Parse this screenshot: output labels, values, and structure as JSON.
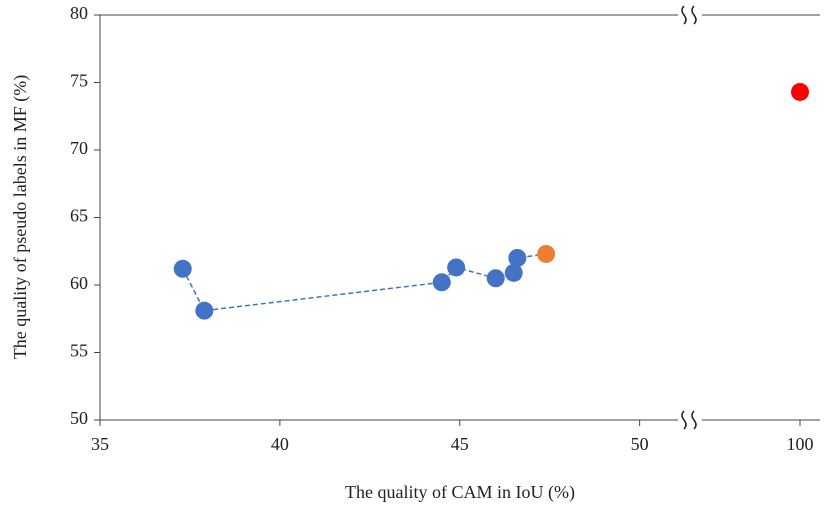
{
  "chart_data": {
    "type": "scatter",
    "xlabel": "The quality of CAM in IoU (%)",
    "ylabel": "The quality of pseudo labels in MF (%)",
    "ylim": [
      50,
      80
    ],
    "yticks": [
      50,
      55,
      60,
      65,
      70,
      75,
      80
    ],
    "x_segments": [
      {
        "xlim": [
          35,
          51.4
        ],
        "xticks": [
          35,
          40,
          45,
          50
        ]
      },
      {
        "xlim": [
          97,
          100.5
        ],
        "xticks": [
          100
        ]
      }
    ],
    "series": [
      {
        "color": "#4472c4",
        "line": "dashed",
        "x": [
          37.3,
          37.9,
          44.5,
          44.9,
          46.0,
          46.5,
          46.6
        ],
        "values": [
          61.2,
          58.1,
          60.2,
          61.3,
          60.5,
          60.9,
          62.0
        ]
      },
      {
        "color": "#ed7d31",
        "line": "dashed",
        "x": [
          47.4
        ],
        "values": [
          62.3
        ]
      },
      {
        "color": "#ff0000",
        "x": [
          100
        ],
        "values": [
          74.3
        ]
      }
    ]
  }
}
